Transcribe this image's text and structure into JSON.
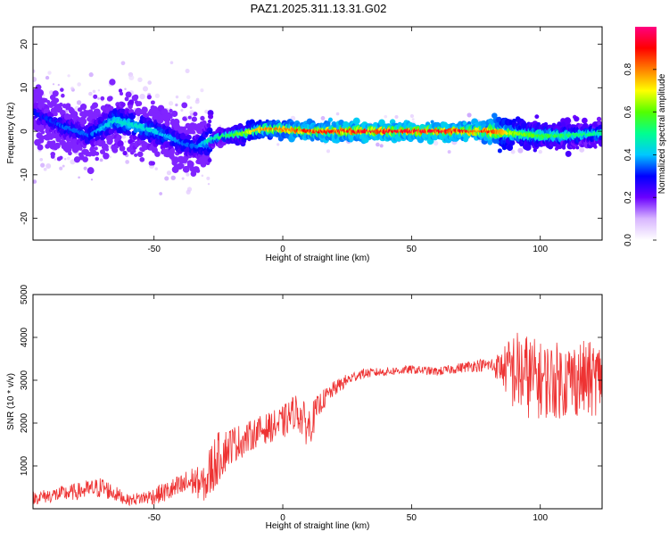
{
  "title": "PAZ1.2025.311.13.31.G02",
  "chart_data": [
    {
      "type": "heatmap",
      "xlabel": "Height of straight line (km)",
      "ylabel": "Frequency (Hz)",
      "xlim": [
        -97,
        124
      ],
      "ylim": [
        -25,
        24
      ],
      "xticks": [
        -50,
        0,
        50,
        100
      ],
      "yticks": [
        -20,
        -10,
        0,
        10,
        20
      ],
      "colorbar": {
        "label": "Normalized spectral amplitude",
        "range": [
          0.0,
          1.0
        ],
        "ticks": [
          0.0,
          0.2,
          0.4,
          0.6,
          0.8
        ],
        "tick_labels": [
          "0.0",
          "0.2",
          "0.4",
          "0.6",
          "0.8"
        ],
        "colors": [
          "#ffffff",
          "#d8b6ff",
          "#6a00ff",
          "#0000ff",
          "#00c8ff",
          "#00ff90",
          "#52ff00",
          "#ffff00",
          "#ff8000",
          "#ff0000",
          "#ff0080"
        ]
      },
      "ridge": {
        "x": [
          -97,
          -85,
          -75,
          -65,
          -55,
          -45,
          -38,
          -33,
          -28,
          -22,
          -15,
          -8,
          0,
          10,
          20,
          40,
          60,
          80,
          90,
          100,
          110,
          124
        ],
        "freq": [
          4.5,
          1.0,
          -1.0,
          2.5,
          1.0,
          -1.0,
          -3.0,
          -3.5,
          -2.0,
          -1.0,
          -0.5,
          0.5,
          0.5,
          0.0,
          0.0,
          0.0,
          0.0,
          0.0,
          -0.5,
          -1.0,
          -1.0,
          -0.5
        ],
        "amplitude": [
          0.3,
          0.35,
          0.35,
          0.45,
          0.45,
          0.4,
          0.35,
          0.35,
          0.5,
          0.55,
          0.65,
          0.8,
          0.85,
          0.9,
          0.92,
          0.95,
          0.95,
          0.9,
          0.65,
          0.6,
          0.55,
          0.5
        ]
      }
    },
    {
      "type": "line",
      "xlabel": "Height of straight line (km)",
      "ylabel": "SNR (10 * v/v)",
      "xlim": [
        -97,
        124
      ],
      "ylim": [
        0,
        5000
      ],
      "xticks": [
        -50,
        0,
        50,
        100
      ],
      "yticks": [
        1000,
        2000,
        3000,
        4000,
        5000
      ],
      "series": [
        {
          "name": "SNR",
          "color": "#ee3333",
          "x": [
            -97,
            -80,
            -70,
            -60,
            -50,
            -40,
            -35,
            -30,
            -28,
            -25,
            -20,
            -15,
            -10,
            -5,
            0,
            5,
            10,
            15,
            20,
            25,
            30,
            40,
            50,
            60,
            70,
            75,
            80,
            85,
            90,
            95,
            100,
            105,
            110,
            115,
            120,
            124
          ],
          "y": [
            250,
            400,
            500,
            200,
            300,
            500,
            650,
            550,
            900,
            1200,
            1500,
            1600,
            1800,
            1900,
            2000,
            2300,
            1900,
            2500,
            2800,
            3000,
            3150,
            3200,
            3250,
            3200,
            3300,
            3350,
            3350,
            3300,
            3200,
            3100,
            3000,
            3000,
            3000,
            3050,
            3000,
            3100
          ],
          "noise": [
            150,
            200,
            250,
            120,
            200,
            300,
            350,
            400,
            700,
            600,
            450,
            380,
            350,
            350,
            400,
            400,
            500,
            250,
            180,
            150,
            120,
            100,
            100,
            100,
            120,
            150,
            150,
            400,
            1000,
            1000,
            900,
            900,
            900,
            900,
            900,
            800
          ]
        }
      ]
    }
  ]
}
